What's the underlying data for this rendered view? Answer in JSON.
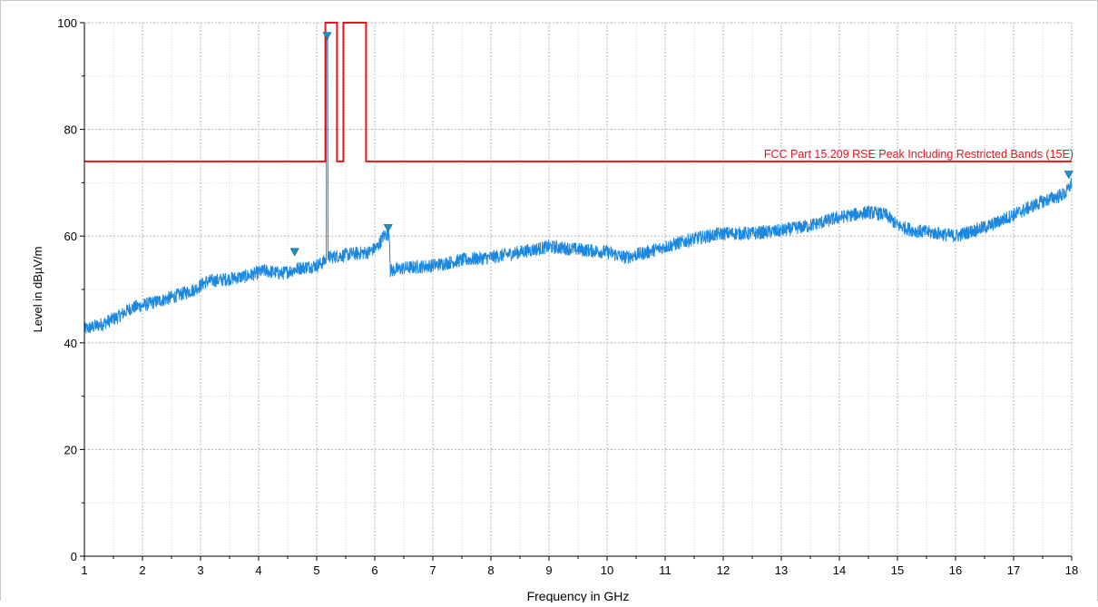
{
  "chart_data": {
    "type": "line",
    "xlabel": "Frequency in GHz",
    "ylabel": "Level in dBµV/m",
    "xlim": [
      1,
      18
    ],
    "ylim": [
      0,
      100
    ],
    "x_ticks": [
      1,
      2,
      3,
      4,
      5,
      6,
      7,
      8,
      9,
      10,
      11,
      12,
      13,
      14,
      15,
      16,
      17,
      18
    ],
    "y_ticks": [
      0,
      20,
      40,
      60,
      80,
      100
    ],
    "grid": true,
    "limit_line": {
      "label": "FCC Part 15.209 RSE Peak Including Restricted Bands (15E)",
      "color": "#e8141c",
      "points": [
        [
          1,
          74
        ],
        [
          5.15,
          74
        ],
        [
          5.15,
          100
        ],
        [
          5.35,
          100
        ],
        [
          5.35,
          74
        ],
        [
          5.46,
          74
        ],
        [
          5.46,
          100
        ],
        [
          5.85,
          100
        ],
        [
          5.85,
          74
        ],
        [
          18,
          74
        ]
      ]
    },
    "trace": {
      "color": "#1a87e0",
      "envelope": [
        [
          1,
          42.5
        ],
        [
          1.3,
          43.5
        ],
        [
          1.6,
          45
        ],
        [
          1.8,
          46.5
        ],
        [
          2.0,
          47
        ],
        [
          2.5,
          48.5
        ],
        [
          2.9,
          50
        ],
        [
          3.1,
          51.5
        ],
        [
          3.5,
          52
        ],
        [
          3.8,
          52.5
        ],
        [
          4.1,
          53.5
        ],
        [
          4.4,
          53
        ],
        [
          4.7,
          54
        ],
        [
          5.0,
          54.5
        ],
        [
          5.1,
          55
        ],
        [
          5.2,
          56
        ],
        [
          5.5,
          56.5
        ],
        [
          5.9,
          57
        ],
        [
          6.05,
          58
        ],
        [
          6.15,
          60
        ],
        [
          6.25,
          60.5
        ],
        [
          6.27,
          53.5
        ],
        [
          6.5,
          54
        ],
        [
          7.0,
          54.5
        ],
        [
          7.5,
          55.5
        ],
        [
          8.0,
          56
        ],
        [
          8.5,
          57
        ],
        [
          9.0,
          58
        ],
        [
          9.5,
          57.5
        ],
        [
          10.0,
          57
        ],
        [
          10.3,
          56
        ],
        [
          10.7,
          57
        ],
        [
          11.0,
          58
        ],
        [
          11.5,
          59.5
        ],
        [
          12.0,
          60.5
        ],
        [
          12.5,
          60.5
        ],
        [
          13.0,
          61
        ],
        [
          13.5,
          62
        ],
        [
          14.0,
          63.5
        ],
        [
          14.5,
          64.5
        ],
        [
          14.8,
          64
        ],
        [
          15.0,
          62
        ],
        [
          15.3,
          61
        ],
        [
          15.7,
          60.5
        ],
        [
          16.0,
          60
        ],
        [
          16.3,
          61
        ],
        [
          16.6,
          62
        ],
        [
          17.0,
          64
        ],
        [
          17.5,
          66.5
        ],
        [
          17.9,
          68
        ],
        [
          18.0,
          70
        ]
      ],
      "spike": {
        "x": 5.18,
        "peak": 98
      }
    },
    "markers": [
      {
        "x": 4.62,
        "y": 57
      },
      {
        "x": 5.18,
        "y": 97.5
      },
      {
        "x": 6.23,
        "y": 61.5
      },
      {
        "x": 17.95,
        "y": 71.5
      }
    ]
  }
}
